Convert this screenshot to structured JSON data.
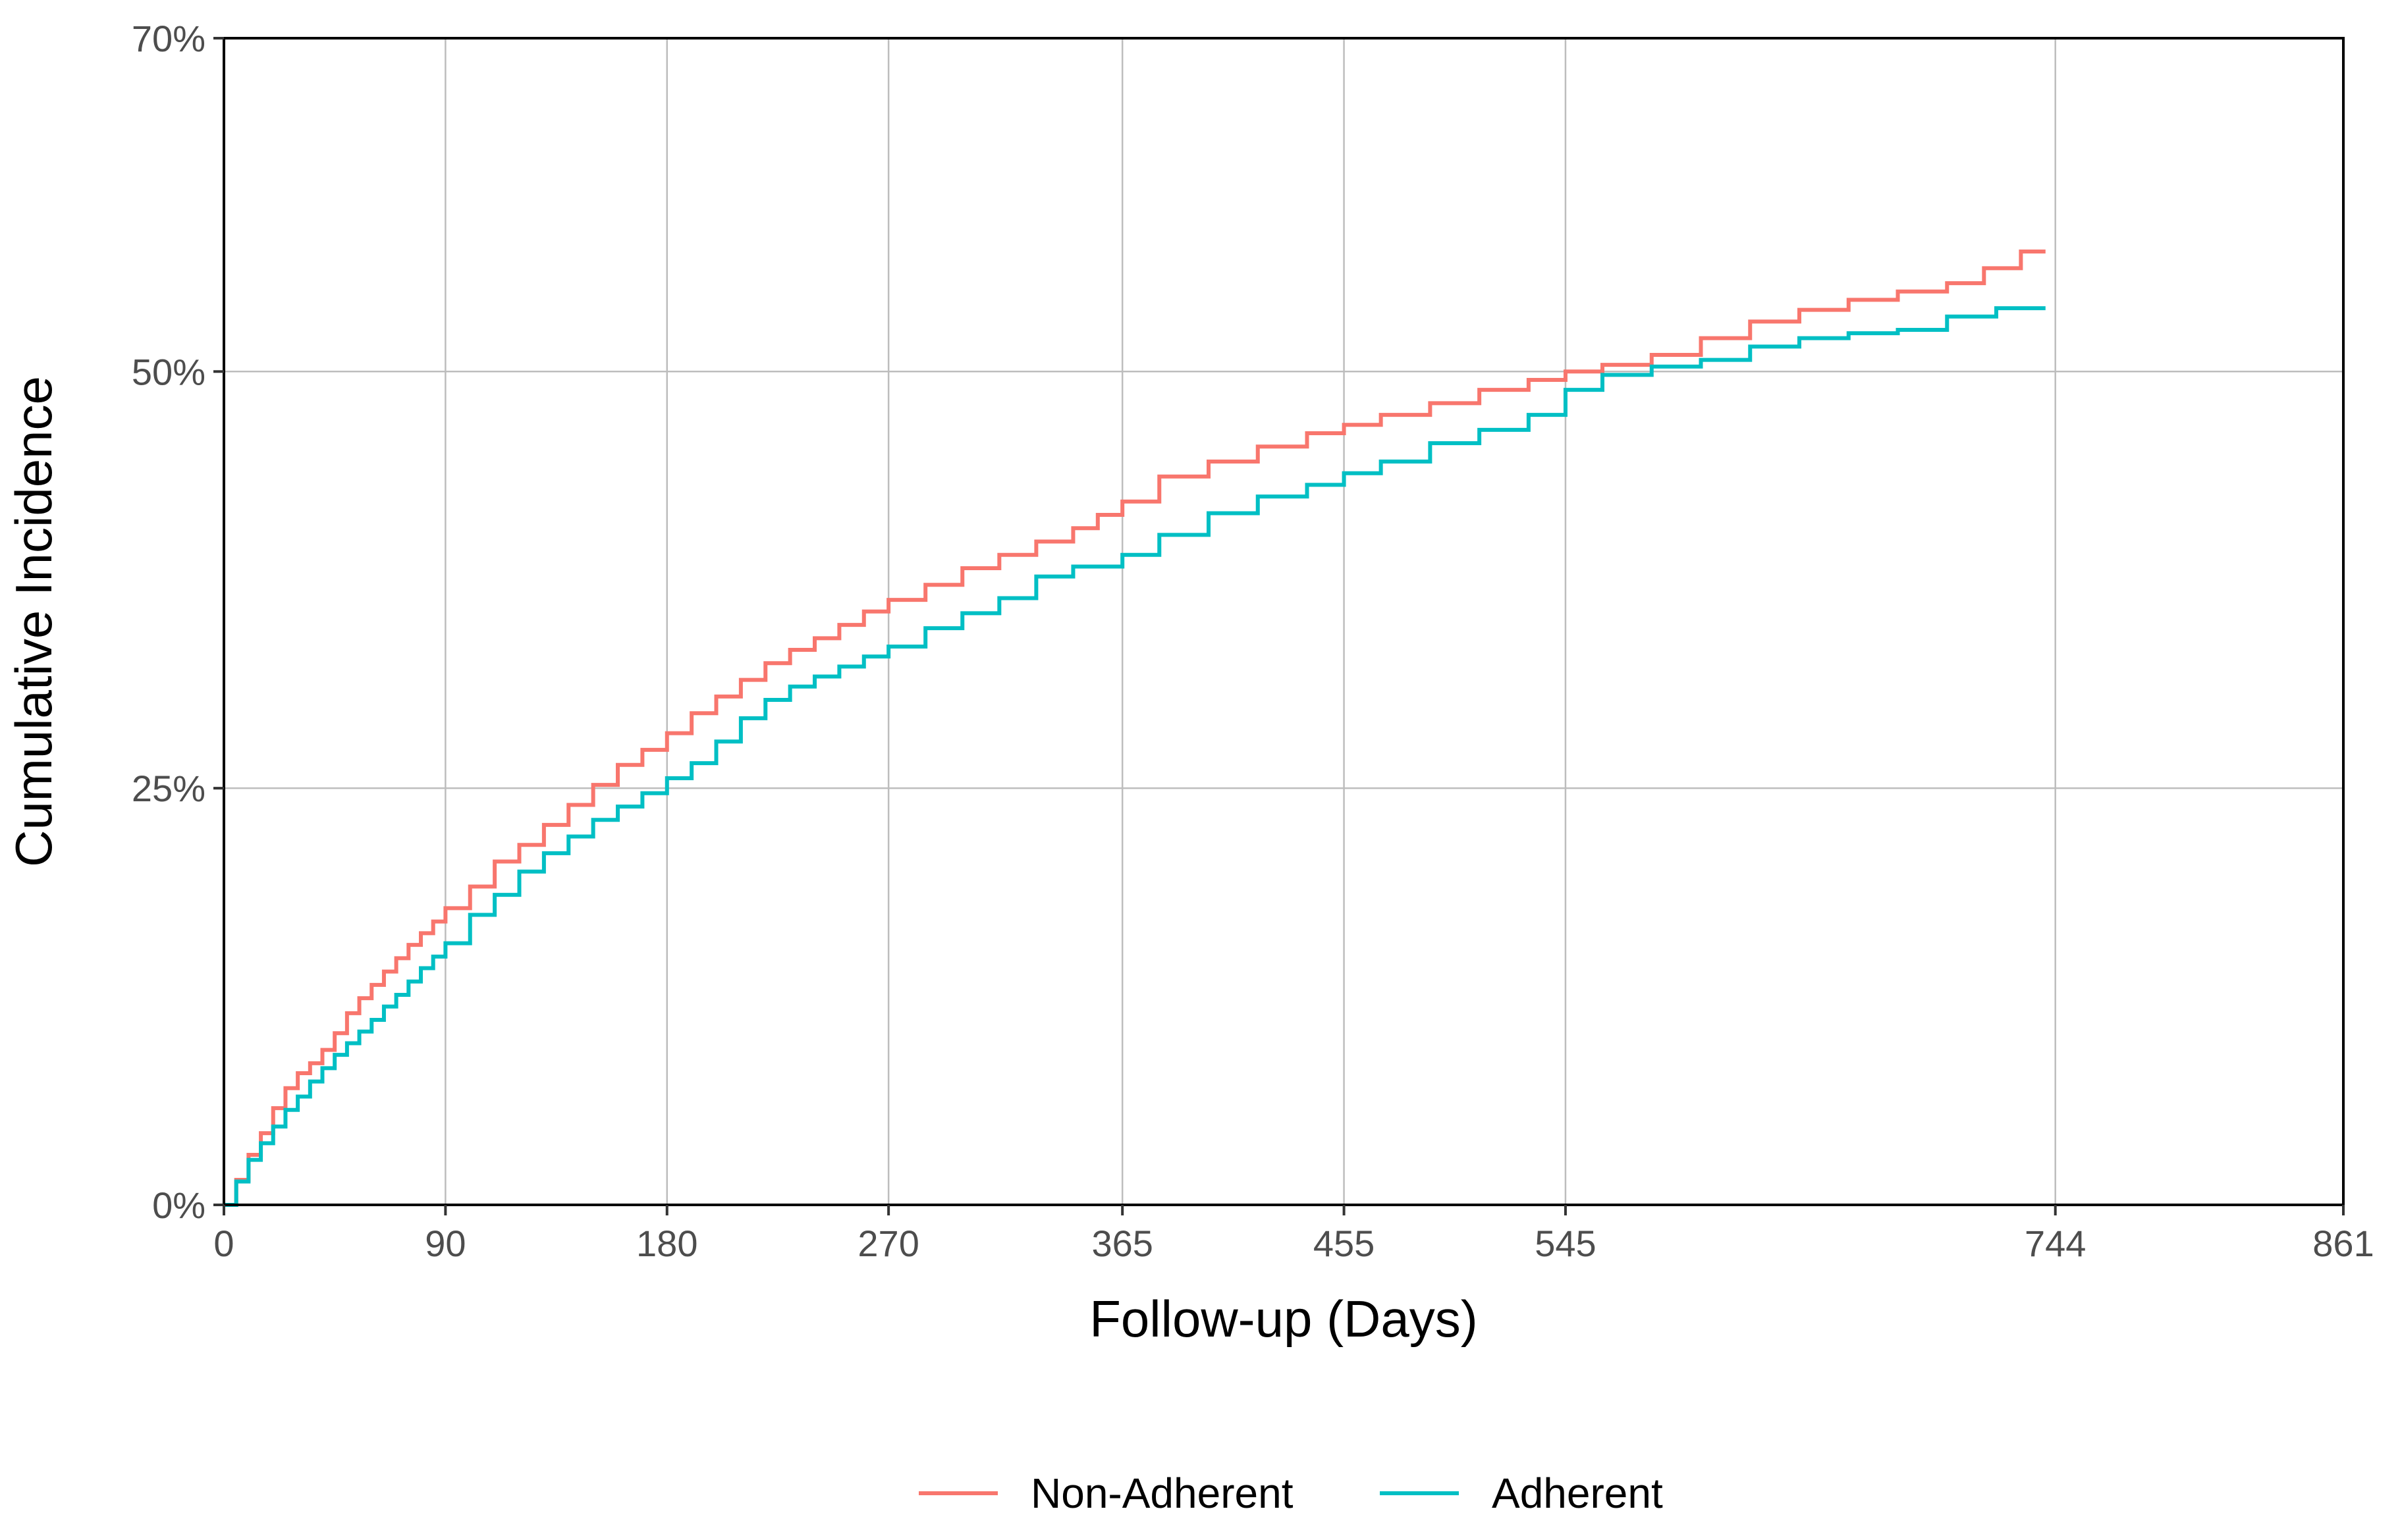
{
  "chart_data": {
    "type": "line",
    "step": true,
    "xlabel": "Follow-up (Days)",
    "ylabel": "Cumulative Incidence",
    "xlim": [
      0,
      861
    ],
    "ylim": [
      0,
      70
    ],
    "xticks": [
      0,
      90,
      180,
      270,
      365,
      455,
      545,
      744,
      861
    ],
    "yticks": [
      0,
      25,
      50,
      70
    ],
    "ytick_labels": [
      "0%",
      "25%",
      "50%",
      "70%"
    ],
    "grid": true,
    "legend_position": "bottom",
    "series": [
      {
        "name": "Non-Adherent",
        "color": "#F8766D",
        "x": [
          0,
          5,
          10,
          15,
          20,
          25,
          30,
          35,
          40,
          45,
          50,
          55,
          60,
          65,
          70,
          75,
          80,
          85,
          90,
          100,
          110,
          120,
          130,
          140,
          150,
          160,
          170,
          180,
          190,
          200,
          210,
          220,
          230,
          240,
          250,
          260,
          270,
          285,
          300,
          315,
          330,
          345,
          355,
          365,
          380,
          400,
          420,
          440,
          455,
          470,
          490,
          510,
          530,
          545,
          560,
          580,
          600,
          620,
          640,
          660,
          680,
          700,
          715,
          730,
          740
        ],
        "values": [
          0,
          1.5,
          3,
          4.3,
          5.8,
          7,
          7.9,
          8.5,
          9.3,
          10.3,
          11.5,
          12.4,
          13.2,
          14,
          14.8,
          15.6,
          16.3,
          17,
          17.8,
          19.1,
          20.6,
          21.6,
          22.8,
          24,
          25.2,
          26.4,
          27.3,
          28.3,
          29.5,
          30.5,
          31.5,
          32.5,
          33.3,
          34,
          34.8,
          35.6,
          36.3,
          37.2,
          38.2,
          39,
          39.8,
          40.6,
          41.4,
          42.2,
          43.7,
          44.6,
          45.5,
          46.3,
          46.8,
          47.4,
          48.1,
          48.9,
          49.5,
          50,
          50.4,
          51,
          52,
          53,
          53.7,
          54.3,
          54.8,
          55.3,
          56.2,
          57.2,
          57.2
        ]
      },
      {
        "name": "Adherent",
        "color": "#00BFC4",
        "x": [
          0,
          5,
          10,
          15,
          20,
          25,
          30,
          35,
          40,
          45,
          50,
          55,
          60,
          65,
          70,
          75,
          80,
          85,
          90,
          100,
          110,
          120,
          130,
          140,
          150,
          160,
          170,
          180,
          190,
          200,
          210,
          220,
          230,
          240,
          250,
          260,
          270,
          285,
          300,
          315,
          330,
          345,
          365,
          380,
          400,
          420,
          440,
          455,
          470,
          490,
          510,
          530,
          545,
          560,
          580,
          600,
          620,
          640,
          660,
          680,
          700,
          720,
          740
        ],
        "values": [
          0,
          1.4,
          2.7,
          3.7,
          4.7,
          5.7,
          6.5,
          7.4,
          8.2,
          9,
          9.7,
          10.4,
          11.1,
          11.9,
          12.6,
          13.4,
          14.2,
          14.9,
          15.7,
          17.4,
          18.6,
          20,
          21.1,
          22.1,
          23.1,
          23.9,
          24.7,
          25.6,
          26.5,
          27.8,
          29.2,
          30.3,
          31.1,
          31.7,
          32.3,
          32.9,
          33.5,
          34.6,
          35.5,
          36.4,
          37.7,
          38.3,
          39,
          40.2,
          41.5,
          42.5,
          43.2,
          43.9,
          44.6,
          45.7,
          46.5,
          47.4,
          48.9,
          49.8,
          50.3,
          50.7,
          51.5,
          52,
          52.3,
          52.5,
          53.3,
          53.8,
          53.8
        ]
      }
    ]
  }
}
